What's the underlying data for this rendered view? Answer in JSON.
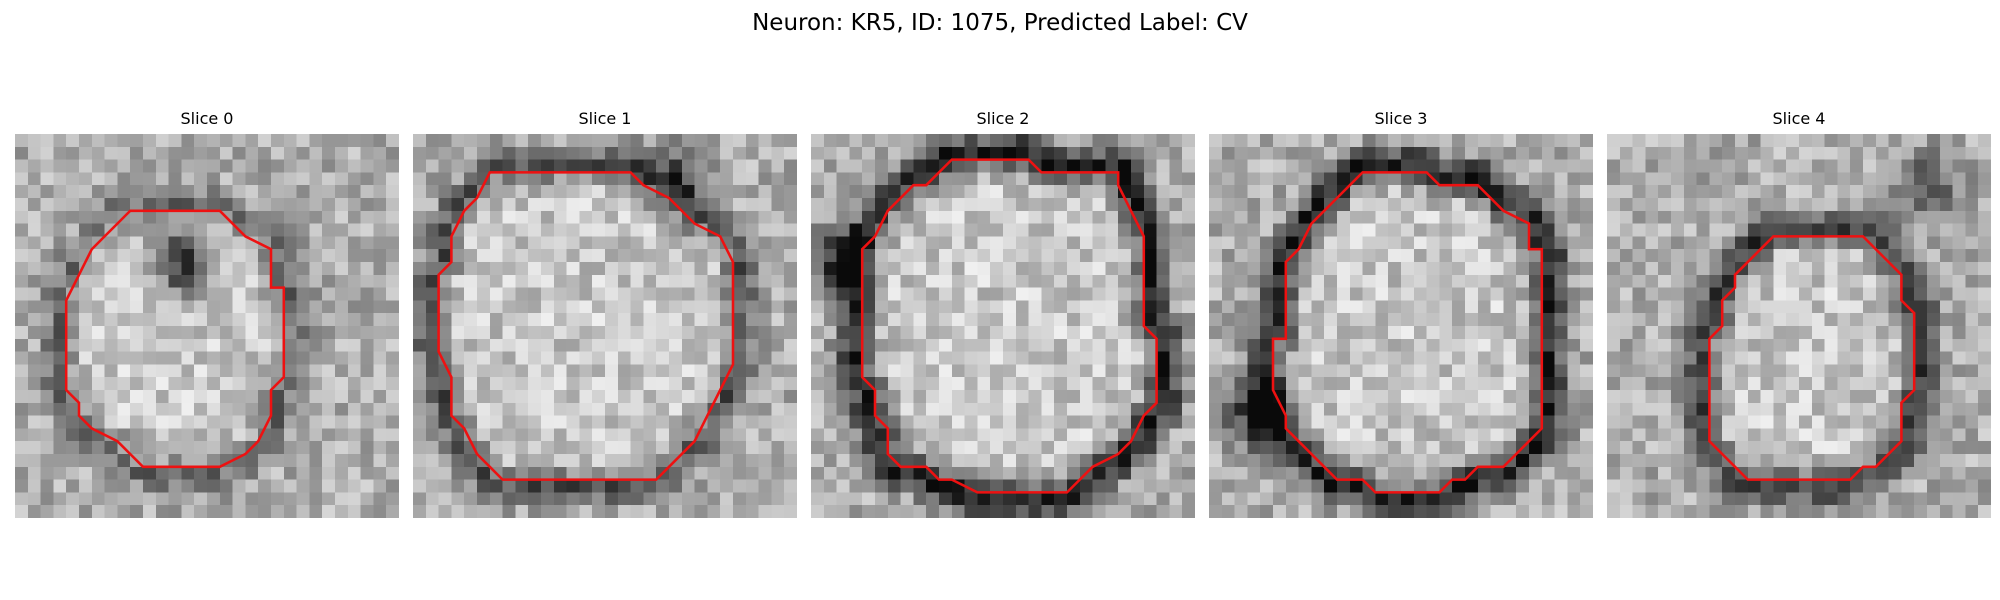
{
  "figure": {
    "title": "Neuron: KR5, ID: 1075, Predicted Label: CV"
  },
  "colors": {
    "contour": "#ee1111",
    "background": "#ffffff"
  },
  "image_grid": {
    "rows": 30,
    "cols": 30
  },
  "panels": [
    {
      "title": "Slice 0",
      "ring_strength": 0.25,
      "dark_blob": {
        "cx": 13.0,
        "cy": 10.0,
        "strength": 0.55
      },
      "contour": [
        [
          9,
          6
        ],
        [
          16,
          6
        ],
        [
          18,
          8
        ],
        [
          20,
          9
        ],
        [
          20,
          12
        ],
        [
          21,
          12
        ],
        [
          21,
          19
        ],
        [
          20,
          20
        ],
        [
          20,
          22
        ],
        [
          19,
          24
        ],
        [
          18,
          25
        ],
        [
          16,
          26
        ],
        [
          10,
          26
        ],
        [
          9,
          25
        ],
        [
          8,
          24
        ],
        [
          6,
          23
        ],
        [
          5,
          22
        ],
        [
          5,
          21
        ],
        [
          4,
          20
        ],
        [
          4,
          13
        ],
        [
          5,
          11
        ],
        [
          6,
          9
        ],
        [
          7,
          8
        ],
        [
          8,
          7
        ]
      ]
    },
    {
      "title": "Slice 1",
      "ring_strength": 0.35,
      "dark_blob": {
        "cx": 21.0,
        "cy": 3.0,
        "strength": 0.35
      },
      "contour": [
        [
          6,
          3
        ],
        [
          17,
          3
        ],
        [
          18,
          4
        ],
        [
          20,
          5
        ],
        [
          22,
          7
        ],
        [
          24,
          8
        ],
        [
          25,
          10
        ],
        [
          25,
          18
        ],
        [
          24,
          20
        ],
        [
          23,
          22
        ],
        [
          22,
          24
        ],
        [
          20,
          26
        ],
        [
          19,
          27
        ],
        [
          7,
          27
        ],
        [
          6,
          26
        ],
        [
          5,
          25
        ],
        [
          4,
          23
        ],
        [
          3,
          22
        ],
        [
          3,
          19
        ],
        [
          2,
          17
        ],
        [
          2,
          11
        ],
        [
          3,
          10
        ],
        [
          3,
          8
        ],
        [
          4,
          6
        ],
        [
          5,
          5
        ]
      ]
    },
    {
      "title": "Slice 2",
      "ring_strength": 0.55,
      "dark_blob": {
        "cx": 2.0,
        "cy": 10.0,
        "strength": 0.45
      },
      "contour": [
        [
          11,
          2
        ],
        [
          17,
          2
        ],
        [
          18,
          3
        ],
        [
          24,
          3
        ],
        [
          24,
          4
        ],
        [
          25,
          6
        ],
        [
          26,
          8
        ],
        [
          26,
          15
        ],
        [
          27,
          16
        ],
        [
          27,
          21
        ],
        [
          26,
          22
        ],
        [
          25,
          24
        ],
        [
          24,
          25
        ],
        [
          22,
          26
        ],
        [
          21,
          27
        ],
        [
          20,
          28
        ],
        [
          13,
          28
        ],
        [
          11,
          27
        ],
        [
          10,
          27
        ],
        [
          9,
          26
        ],
        [
          7,
          26
        ],
        [
          6,
          25
        ],
        [
          6,
          23
        ],
        [
          5,
          22
        ],
        [
          5,
          20
        ],
        [
          4,
          19
        ],
        [
          4,
          13
        ],
        [
          4,
          9
        ],
        [
          5,
          8
        ],
        [
          6,
          6
        ],
        [
          7,
          5
        ],
        [
          8,
          4
        ],
        [
          9,
          4
        ],
        [
          10,
          3
        ]
      ]
    },
    {
      "title": "Slice 3",
      "ring_strength": 0.55,
      "dark_blob": {
        "cx": 4.0,
        "cy": 22.0,
        "strength": 0.55
      },
      "contour": [
        [
          12,
          3
        ],
        [
          17,
          3
        ],
        [
          18,
          4
        ],
        [
          21,
          4
        ],
        [
          22,
          5
        ],
        [
          23,
          6
        ],
        [
          25,
          7
        ],
        [
          25,
          9
        ],
        [
          26,
          9
        ],
        [
          26,
          23
        ],
        [
          25,
          24
        ],
        [
          24,
          25
        ],
        [
          23,
          26
        ],
        [
          21,
          26
        ],
        [
          20,
          27
        ],
        [
          19,
          27
        ],
        [
          18,
          28
        ],
        [
          13,
          28
        ],
        [
          12,
          27
        ],
        [
          10,
          27
        ],
        [
          9,
          26
        ],
        [
          8,
          25
        ],
        [
          7,
          24
        ],
        [
          6,
          23
        ],
        [
          6,
          22
        ],
        [
          5,
          20
        ],
        [
          5,
          16
        ],
        [
          6,
          16
        ],
        [
          6,
          10
        ],
        [
          7,
          9
        ],
        [
          8,
          7
        ],
        [
          9,
          6
        ],
        [
          10,
          5
        ],
        [
          11,
          4
        ]
      ]
    },
    {
      "title": "Slice 4",
      "ring_strength": 0.45,
      "dark_blob": {
        "cx": 25.0,
        "cy": 4.0,
        "strength": 0.35
      },
      "contour": [
        [
          13,
          8
        ],
        [
          20,
          8
        ],
        [
          22,
          10
        ],
        [
          23,
          11
        ],
        [
          23,
          13
        ],
        [
          24,
          14
        ],
        [
          24,
          20
        ],
        [
          23,
          21
        ],
        [
          23,
          24
        ],
        [
          22,
          25
        ],
        [
          21,
          26
        ],
        [
          20,
          26
        ],
        [
          19,
          27
        ],
        [
          11,
          27
        ],
        [
          10,
          26
        ],
        [
          9,
          25
        ],
        [
          8,
          24
        ],
        [
          8,
          16
        ],
        [
          9,
          15
        ],
        [
          9,
          13
        ],
        [
          10,
          12
        ],
        [
          10,
          11
        ],
        [
          12,
          9
        ]
      ]
    }
  ]
}
